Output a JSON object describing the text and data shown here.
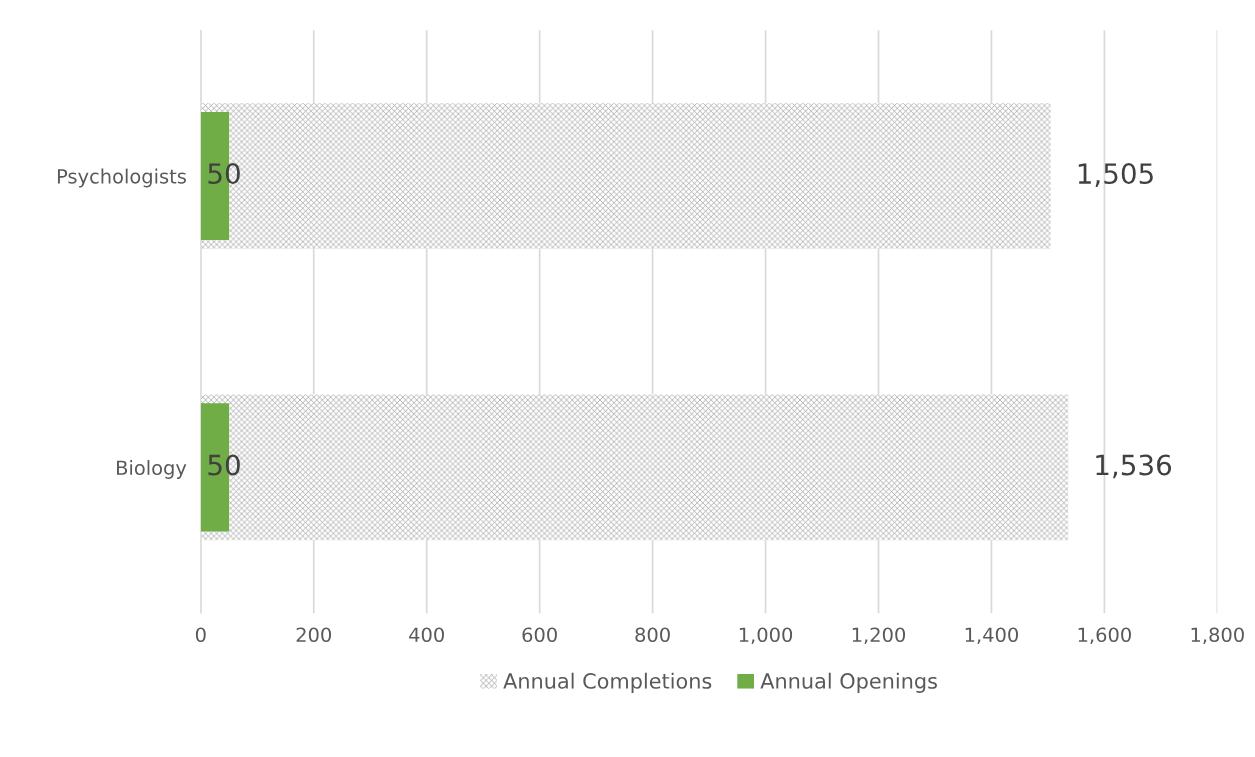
{
  "chart_data": {
    "type": "bar",
    "orientation": "horizontal",
    "categories": [
      "Psychologists",
      "Biology"
    ],
    "series": [
      {
        "name": "Annual Completions",
        "color": "#a6a6a6",
        "values": [
          1505,
          1536
        ],
        "value_labels": [
          "1,505",
          "1,536"
        ]
      },
      {
        "name": "Annual Openings",
        "color": "#70ad47",
        "values": [
          50,
          50
        ],
        "value_labels": [
          "50",
          "50"
        ]
      }
    ],
    "xlim": [
      0,
      1800
    ],
    "xticks": [
      0,
      200,
      400,
      600,
      800,
      {
        "value": 1000,
        "label": "1,000"
      },
      {
        "value": 1200,
        "label": "1,200"
      },
      {
        "value": 1400,
        "label": "1,400"
      },
      {
        "value": 1600,
        "label": "1,600"
      },
      {
        "value": 1800,
        "label": "1,800"
      }
    ],
    "grid": "x",
    "legend": "bottom"
  }
}
